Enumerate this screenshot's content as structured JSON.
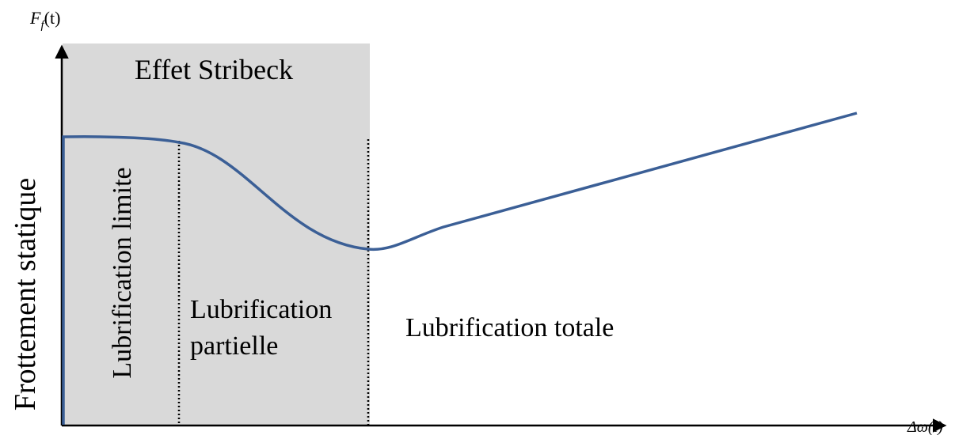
{
  "y_axis": {
    "symbol": "F",
    "subscript": "f",
    "argument": "(t)",
    "label": "Frottement statique"
  },
  "x_axis": {
    "label": "Δω(t)"
  },
  "regions": {
    "title": "Effet Stribeck",
    "boundary": "Lubrification limite",
    "mixed": [
      "Lubrification",
      "partielle"
    ],
    "full": "Lubrification totale"
  }
}
